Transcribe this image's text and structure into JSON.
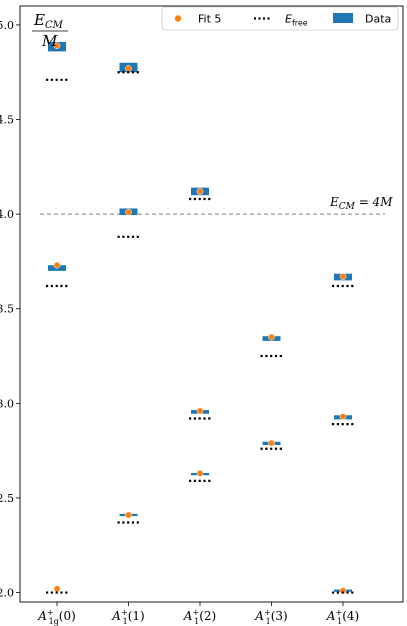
{
  "chart_data": {
    "type": "scatter",
    "ylabel": {
      "numerator": "E",
      "numerator_sub": "CM",
      "denominator": "M"
    },
    "ylim": [
      1.95,
      5.1
    ],
    "yticks": [
      2.0,
      2.5,
      3.0,
      3.5,
      4.0,
      4.5,
      5.0
    ],
    "ytick_labels": [
      "2.0",
      "2.5",
      "3.0",
      "3.5",
      "4.0",
      "4.5",
      "5.0"
    ],
    "categories": [
      {
        "base": "A",
        "sup": "+",
        "sub": "1g",
        "arg": "(0)"
      },
      {
        "base": "A",
        "sup": "+",
        "sub": "1",
        "arg": "(1)"
      },
      {
        "base": "A",
        "sup": "+",
        "sub": "1",
        "arg": "(2)"
      },
      {
        "base": "A",
        "sup": "+",
        "sub": "1",
        "arg": "(3)"
      },
      {
        "base": "A",
        "sup": "+",
        "sub": "1",
        "arg": "(4)"
      }
    ],
    "legend": {
      "placement": "top-right",
      "entries": [
        {
          "kind": "fit",
          "label": "Fit 5"
        },
        {
          "kind": "free",
          "label_main": "E",
          "label_sub": "free"
        },
        {
          "kind": "data",
          "label": "Data"
        }
      ]
    },
    "reference_line": {
      "y": 4.0,
      "label_lhs": "E",
      "label_sub": "CM",
      "label_rhs": " = 4M"
    },
    "series": [
      {
        "name": "Data",
        "kind": "band",
        "points": [
          {
            "cat": 0,
            "low": 4.86,
            "high": 4.91
          },
          {
            "cat": 0,
            "low": 3.7,
            "high": 3.73
          },
          {
            "cat": 1,
            "low": 4.75,
            "high": 4.8
          },
          {
            "cat": 1,
            "low": 3.995,
            "high": 4.03
          },
          {
            "cat": 1,
            "low": 2.405,
            "high": 2.415
          },
          {
            "cat": 2,
            "low": 4.1,
            "high": 4.14
          },
          {
            "cat": 2,
            "low": 2.945,
            "high": 2.965
          },
          {
            "cat": 2,
            "low": 2.62,
            "high": 2.632
          },
          {
            "cat": 3,
            "low": 3.33,
            "high": 3.355
          },
          {
            "cat": 3,
            "low": 2.78,
            "high": 2.797
          },
          {
            "cat": 4,
            "low": 3.65,
            "high": 3.685
          },
          {
            "cat": 4,
            "low": 2.915,
            "high": 2.937
          },
          {
            "cat": 4,
            "low": 2.005,
            "high": 2.015
          }
        ]
      },
      {
        "name": "Fit 5",
        "kind": "point",
        "points": [
          {
            "cat": 0,
            "y": 4.89
          },
          {
            "cat": 0,
            "y": 3.73
          },
          {
            "cat": 0,
            "y": 2.02
          },
          {
            "cat": 1,
            "y": 4.77
          },
          {
            "cat": 1,
            "y": 4.01
          },
          {
            "cat": 1,
            "y": 2.41
          },
          {
            "cat": 2,
            "y": 4.12
          },
          {
            "cat": 2,
            "y": 2.96
          },
          {
            "cat": 2,
            "y": 2.63
          },
          {
            "cat": 3,
            "y": 3.35
          },
          {
            "cat": 3,
            "y": 2.79
          },
          {
            "cat": 4,
            "y": 3.67
          },
          {
            "cat": 4,
            "y": 2.93
          },
          {
            "cat": 4,
            "y": 2.01
          }
        ]
      },
      {
        "name": "E_free",
        "kind": "dotted",
        "points": [
          {
            "cat": 0,
            "y": 4.71
          },
          {
            "cat": 0,
            "y": 3.62
          },
          {
            "cat": 0,
            "y": 2.0
          },
          {
            "cat": 1,
            "y": 4.75
          },
          {
            "cat": 1,
            "y": 3.88
          },
          {
            "cat": 1,
            "y": 2.37
          },
          {
            "cat": 2,
            "y": 4.08
          },
          {
            "cat": 2,
            "y": 2.92
          },
          {
            "cat": 2,
            "y": 2.59
          },
          {
            "cat": 3,
            "y": 3.25
          },
          {
            "cat": 3,
            "y": 2.76
          },
          {
            "cat": 4,
            "y": 3.62
          },
          {
            "cat": 4,
            "y": 2.89
          },
          {
            "cat": 4,
            "y": 2.0
          }
        ]
      }
    ],
    "colors": {
      "data": "#1f77b4",
      "fit": "#ff7f0e",
      "free": "#000000",
      "reference": "#808080"
    }
  }
}
